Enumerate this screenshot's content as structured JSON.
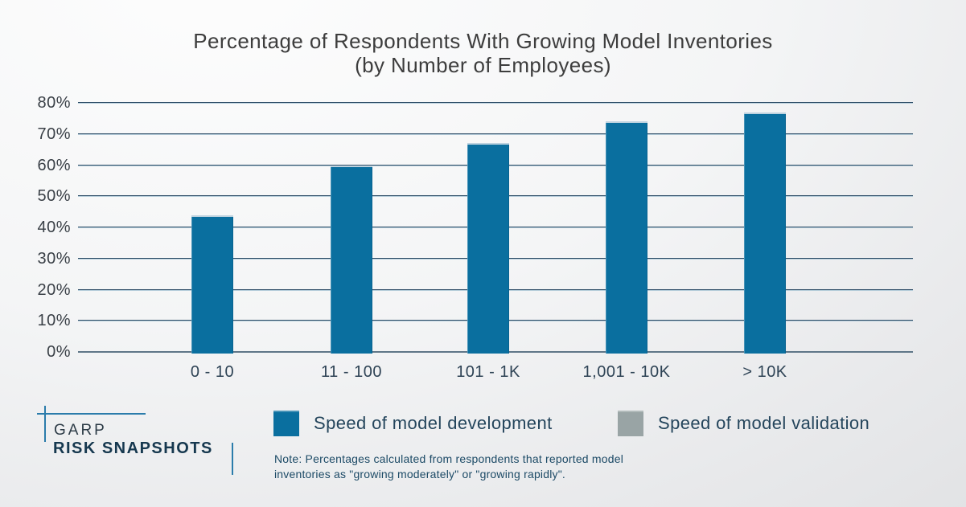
{
  "title": {
    "line1": "Percentage of Respondents With Growing Model Inventories",
    "line2": "(by Number of Employees)"
  },
  "y_axis": {
    "tick_labels": [
      "0%",
      "10%",
      "20%",
      "30%",
      "40%",
      "50%",
      "60%",
      "70%",
      "80%"
    ]
  },
  "legend": {
    "items": [
      {
        "label": "Speed of model development",
        "color": "#0a6f9f"
      },
      {
        "label": "Speed of model validation",
        "color": "#99a4a5"
      }
    ]
  },
  "note": {
    "line1": "Note: Percentages calculated from respondents that reported model",
    "line2": "inventories as \"growing moderately\" or \"growing rapidly\"."
  },
  "logo": {
    "line1": "GARP",
    "line2": "RISK SNAPSHOTS"
  },
  "chart_data": {
    "type": "bar",
    "title": "Percentage of Respondents With Growing Model Inventories (by Number of Employees)",
    "categories": [
      "0 - 10",
      "11 - 100",
      "101 - 1K",
      "1,001 - 10K",
      "> 10K"
    ],
    "series": [
      {
        "name": "Speed of model development",
        "values": [
          44,
          60,
          67,
          74,
          77
        ]
      }
    ],
    "xlabel": "Number of Employees",
    "ylabel": "Percentage of Respondents",
    "ylim": [
      0,
      80
    ],
    "y_ticks": [
      0,
      10,
      20,
      30,
      40,
      50,
      60,
      70,
      80
    ],
    "y_tick_format": "percent",
    "grid": true,
    "legend_position": "bottom",
    "bar_color": "#0a6f9f",
    "legend_entries": [
      "Speed of model development",
      "Speed of model validation"
    ]
  }
}
